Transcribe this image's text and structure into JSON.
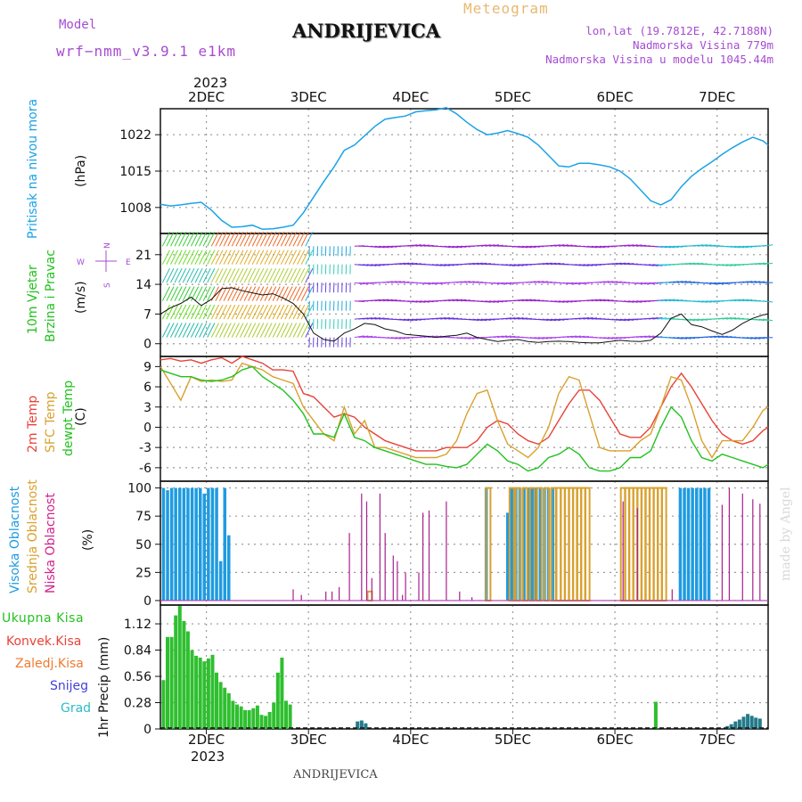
{
  "header": {
    "model_label": "Model",
    "model_name": "wrf−nmm_v3.9.1  e1km",
    "station": "ANDRIJEVICA",
    "subtitle": "Meteogram",
    "coords": "lon,lat (19.7812E, 42.7188N)",
    "altitude": "Nadmorska Visina 779m",
    "model_altitude": "Nadmorska Visina u modelu 1045.44m",
    "year_top": "2023",
    "year_bottom": "2023",
    "footer_station": "ANDRIJEVICA",
    "watermark": "made by Angel"
  },
  "colors": {
    "pressure": "#1aa3e6",
    "temp2m": "#e8423a",
    "sfc": "#d9a12e",
    "dewpt": "#22c21e",
    "high_cloud": "#1e9be0",
    "mid_cloud": "#d9a12e",
    "low_cloud": "#a8208f",
    "precip": "#2fbf2f",
    "snow_bar": "#237a8a",
    "label_purple": "#a64cd0",
    "grid": "#999999"
  },
  "chart_data": [
    {
      "type": "line",
      "id": "pressure",
      "ylabel": "Pritisak na nivou mora",
      "unit": "(hPa)",
      "xlim": [
        1.55,
        7.5
      ],
      "ylim": [
        1003,
        1027
      ],
      "yticks": [
        1008,
        1015,
        1022
      ],
      "x_ticks": [
        2,
        3,
        4,
        5,
        6,
        7
      ],
      "x_tick_labels": [
        "2DEC",
        "3DEC",
        "4DEC",
        "5DEC",
        "6DEC",
        "7DEC"
      ],
      "series": [
        {
          "key": "pressure",
          "x": [
            1.55,
            1.65,
            1.75,
            1.85,
            1.95,
            2.05,
            2.15,
            2.25,
            2.35,
            2.45,
            2.55,
            2.65,
            2.75,
            2.85,
            2.95,
            3.05,
            3.15,
            3.25,
            3.35,
            3.45,
            3.55,
            3.65,
            3.75,
            3.85,
            3.95,
            4.05,
            4.15,
            4.25,
            4.35,
            4.45,
            4.55,
            4.65,
            4.75,
            4.85,
            4.95,
            5.05,
            5.15,
            5.25,
            5.35,
            5.45,
            5.55,
            5.65,
            5.75,
            5.85,
            5.95,
            6.05,
            6.15,
            6.25,
            6.35,
            6.45,
            6.55,
            6.65,
            6.75,
            6.85,
            6.95,
            7.05,
            7.15,
            7.25,
            7.35,
            7.45,
            7.5
          ],
          "y": [
            1008.6,
            1008.3,
            1008.5,
            1008.8,
            1009,
            1007.5,
            1005.5,
            1004.2,
            1004.3,
            1004.6,
            1003.8,
            1003.9,
            1004.2,
            1004.6,
            1007,
            1010,
            1013,
            1015.8,
            1019,
            1020,
            1021.8,
            1023.6,
            1025,
            1025.3,
            1025.6,
            1026.4,
            1026.6,
            1026.8,
            1027.2,
            1026,
            1024.4,
            1023,
            1022,
            1022.3,
            1022.8,
            1022.2,
            1021.5,
            1020,
            1018,
            1016,
            1015.8,
            1016.5,
            1016.5,
            1016.2,
            1015.8,
            1015,
            1013.5,
            1011.4,
            1009.3,
            1008.5,
            1009.5,
            1012,
            1014,
            1015.5,
            1016.8,
            1018.2,
            1019.5,
            1020.6,
            1021.5,
            1020.8,
            1020
          ]
        }
      ]
    },
    {
      "type": "line",
      "id": "wind",
      "ylabel": [
        "10m Vjetar",
        "Brzina i Pravac"
      ],
      "unit": "(m/s)",
      "xlim": [
        1.55,
        7.5
      ],
      "ylim": [
        -3,
        26
      ],
      "yticks": [
        0,
        7,
        14,
        21
      ],
      "compass": [
        "N",
        "E",
        "S",
        "W"
      ],
      "series": [
        {
          "key": "wind_speed",
          "x": [
            1.55,
            1.65,
            1.75,
            1.85,
            1.95,
            2.05,
            2.15,
            2.25,
            2.35,
            2.45,
            2.55,
            2.65,
            2.75,
            2.85,
            2.95,
            3.05,
            3.15,
            3.25,
            3.35,
            3.45,
            3.55,
            3.65,
            3.75,
            3.85,
            3.95,
            4.05,
            4.15,
            4.25,
            4.35,
            4.45,
            4.55,
            4.65,
            4.75,
            4.85,
            4.95,
            5.05,
            5.15,
            5.25,
            5.35,
            5.45,
            5.55,
            5.65,
            5.75,
            5.85,
            5.95,
            6.05,
            6.15,
            6.25,
            6.35,
            6.45,
            6.55,
            6.65,
            6.75,
            6.85,
            6.95,
            7.05,
            7.15,
            7.25,
            7.35,
            7.45,
            7.5
          ],
          "y": [
            7,
            8.5,
            9.5,
            11,
            9,
            10.5,
            13,
            13.2,
            12.5,
            12,
            11.5,
            11.8,
            10.8,
            9.5,
            7,
            2.5,
            1,
            0.6,
            2.5,
            3.5,
            4.8,
            4.5,
            3.5,
            3,
            2.2,
            2,
            1.8,
            1.5,
            1.8,
            2,
            2.5,
            1.5,
            1,
            0.5,
            0.8,
            1,
            0.5,
            0.3,
            0.5,
            0.6,
            0.5,
            0.3,
            0.2,
            0.2,
            0.5,
            0.8,
            0.6,
            0.5,
            0.8,
            2.5,
            6,
            7,
            4.5,
            4,
            3,
            2.2,
            3.2,
            4.8,
            6,
            6.8,
            7
          ]
        }
      ]
    },
    {
      "type": "line",
      "id": "temperature",
      "ylabel": [
        "2m Temp",
        "SFC Temp",
        "dewpt Temp"
      ],
      "unit": "(C)",
      "xlim": [
        1.55,
        7.5
      ],
      "ylim": [
        -8,
        10.5
      ],
      "yticks": [
        -6,
        -3,
        0,
        3,
        6,
        9
      ],
      "series": [
        {
          "key": "temp2m",
          "x": [
            1.55,
            1.65,
            1.75,
            1.85,
            1.95,
            2.05,
            2.15,
            2.25,
            2.35,
            2.45,
            2.55,
            2.65,
            2.75,
            2.85,
            2.95,
            3.05,
            3.15,
            3.25,
            3.35,
            3.45,
            3.55,
            3.65,
            3.75,
            3.85,
            3.95,
            4.05,
            4.15,
            4.25,
            4.35,
            4.45,
            4.55,
            4.65,
            4.75,
            4.85,
            4.95,
            5.05,
            5.15,
            5.25,
            5.35,
            5.45,
            5.55,
            5.65,
            5.75,
            5.85,
            5.95,
            6.05,
            6.15,
            6.25,
            6.35,
            6.45,
            6.55,
            6.65,
            6.75,
            6.85,
            6.95,
            7.05,
            7.15,
            7.25,
            7.35,
            7.45,
            7.5
          ],
          "y": [
            10,
            10.2,
            9.8,
            10,
            9.5,
            10,
            10.3,
            9.5,
            10.5,
            10,
            9.5,
            8.5,
            8.5,
            8.3,
            5,
            4.5,
            3,
            1.5,
            2,
            1.5,
            0,
            -1,
            -2,
            -2.5,
            -3,
            -3.5,
            -3.5,
            -3.5,
            -3,
            -3,
            -3,
            -2,
            0,
            1,
            0.5,
            -1,
            -2,
            -2.5,
            -1.5,
            1,
            3.5,
            5.5,
            5.5,
            4,
            1.5,
            -1,
            -1.5,
            -1.5,
            0,
            3,
            6,
            8,
            6,
            3.5,
            1,
            -1,
            -2,
            -2.5,
            -2,
            -0.5,
            0
          ]
        },
        {
          "key": "sfc",
          "x": [
            1.55,
            1.65,
            1.75,
            1.85,
            1.95,
            2.05,
            2.15,
            2.25,
            2.35,
            2.45,
            2.55,
            2.65,
            2.75,
            2.85,
            2.95,
            3.05,
            3.15,
            3.25,
            3.35,
            3.45,
            3.55,
            3.65,
            3.75,
            3.85,
            3.95,
            4.05,
            4.15,
            4.25,
            4.35,
            4.45,
            4.55,
            4.65,
            4.75,
            4.85,
            4.95,
            5.05,
            5.15,
            5.25,
            5.35,
            5.45,
            5.55,
            5.65,
            5.75,
            5.85,
            5.95,
            6.05,
            6.15,
            6.25,
            6.35,
            6.45,
            6.55,
            6.65,
            6.75,
            6.85,
            6.95,
            7.05,
            7.15,
            7.25,
            7.35,
            7.45,
            7.5
          ],
          "y": [
            9,
            6.5,
            4,
            7.5,
            6.8,
            7,
            6.8,
            7,
            9.5,
            9,
            8.5,
            7.5,
            7,
            6.5,
            3,
            1,
            -1,
            -2,
            3,
            -1,
            1,
            -3,
            -3,
            -3.5,
            -4,
            -4.5,
            -4.5,
            -4.5,
            -4,
            -2,
            2,
            5,
            5.5,
            1,
            -2.5,
            -3.5,
            -4.5,
            -3,
            0,
            5,
            7.5,
            7,
            2,
            -3,
            -3.5,
            -3.5,
            -3.5,
            -2,
            -1,
            3,
            7.5,
            7,
            3,
            -2,
            -4.5,
            -2,
            -2,
            -2,
            0,
            2.5,
            3
          ]
        },
        {
          "key": "dewpt",
          "x": [
            1.55,
            1.65,
            1.75,
            1.85,
            1.95,
            2.05,
            2.15,
            2.25,
            2.35,
            2.45,
            2.55,
            2.65,
            2.75,
            2.85,
            2.95,
            3.05,
            3.15,
            3.25,
            3.35,
            3.45,
            3.55,
            3.65,
            3.75,
            3.85,
            3.95,
            4.05,
            4.15,
            4.25,
            4.35,
            4.45,
            4.55,
            4.65,
            4.75,
            4.85,
            4.95,
            5.05,
            5.15,
            5.25,
            5.35,
            5.45,
            5.55,
            5.65,
            5.75,
            5.85,
            5.95,
            6.05,
            6.15,
            6.25,
            6.35,
            6.45,
            6.55,
            6.65,
            6.75,
            6.85,
            6.95,
            7.05,
            7.15,
            7.25,
            7.35,
            7.45,
            7.5
          ],
          "y": [
            8.5,
            8,
            7.5,
            7.5,
            7,
            6.8,
            7,
            7.5,
            8.5,
            9,
            7.5,
            6.5,
            5.5,
            4,
            2,
            -1,
            -1,
            -1.5,
            2,
            -1.5,
            -2,
            -3,
            -3.5,
            -4,
            -4.5,
            -5,
            -5.5,
            -5.5,
            -5.8,
            -6,
            -5.5,
            -4,
            -2.5,
            -3.5,
            -5,
            -5.5,
            -6.5,
            -6,
            -4.5,
            -4,
            -3,
            -4,
            -6,
            -6.5,
            -6.5,
            -6,
            -4.5,
            -4.5,
            -3.5,
            0,
            3,
            1.5,
            -2,
            -4.5,
            -5,
            -4,
            -4.5,
            -5,
            -5.5,
            -6,
            -5.5
          ]
        }
      ]
    },
    {
      "type": "bar",
      "id": "cloud",
      "ylabel": [
        "Visoka Oblacnost",
        "Srednja Oblacnost",
        "Niska Oblacnost"
      ],
      "unit": "(%)",
      "xlim": [
        1.55,
        7.5
      ],
      "ylim": [
        -4,
        106
      ],
      "yticks": [
        0,
        25,
        50,
        75,
        100
      ],
      "series": [
        {
          "key": "high_cloud",
          "x": [
            1.58,
            1.62,
            1.66,
            1.7,
            1.74,
            1.78,
            1.82,
            1.86,
            1.9,
            1.94,
            1.98,
            2.02,
            2.06,
            2.1,
            2.14,
            2.18,
            2.22,
            4.74,
            4.95,
            4.99,
            5.03,
            5.07,
            5.11,
            5.15,
            5.19,
            5.23,
            5.27,
            5.31,
            5.35,
            5.39,
            6.64,
            6.68,
            6.72,
            6.76,
            6.8,
            6.84,
            6.88,
            6.92
          ],
          "values": [
            100,
            98,
            100,
            100,
            100,
            100,
            100,
            100,
            100,
            100,
            95,
            100,
            100,
            100,
            35,
            100,
            58,
            100,
            78,
            100,
            100,
            100,
            100,
            100,
            100,
            100,
            100,
            100,
            100,
            100,
            100,
            100,
            100,
            100,
            100,
            100,
            100,
            100
          ]
        },
        {
          "key": "mid_cloud",
          "x": [
            3.6,
            4.76,
            4.99,
            5.05,
            5.12,
            5.19,
            5.26,
            5.33,
            5.4,
            5.45,
            5.49,
            5.53,
            5.57,
            5.61,
            5.65,
            5.69,
            5.73,
            6.08,
            6.12,
            6.16,
            6.2,
            6.24,
            6.28,
            6.32,
            6.36,
            6.4,
            6.44,
            6.48
          ],
          "values": [
            8,
            100,
            100,
            100,
            100,
            100,
            100,
            100,
            100,
            100,
            100,
            100,
            100,
            100,
            100,
            100,
            100,
            100,
            100,
            100,
            100,
            100,
            100,
            100,
            100,
            100,
            100,
            100
          ]
        },
        {
          "key": "low_cloud",
          "x": [
            2.85,
            2.93,
            3.17,
            3.23,
            3.3,
            3.4,
            3.52,
            3.57,
            3.62,
            3.7,
            3.75,
            3.83,
            3.87,
            3.92,
            3.95,
            4.08,
            4.12,
            4.18,
            4.35,
            4.48,
            4.6,
            6.08,
            6.22,
            6.56,
            7.05,
            7.12,
            7.25,
            7.35,
            7.42
          ],
          "values": [
            10,
            5,
            8,
            8,
            12,
            60,
            95,
            88,
            20,
            95,
            60,
            40,
            35,
            5,
            25,
            25,
            78,
            80,
            88,
            8,
            3,
            88,
            82,
            10,
            85,
            100,
            95,
            90,
            86
          ]
        }
      ]
    },
    {
      "type": "bar",
      "id": "precip",
      "ylabel": "1hr Precip (mm)",
      "xlim": [
        1.55,
        7.5
      ],
      "ylim": [
        0,
        1.32
      ],
      "yticks": [
        0,
        0.28,
        0.56,
        0.84,
        1.12
      ],
      "legend": [
        "Ukupna  Kisa",
        "Konvek.Kisa",
        "Zaledj.Kisa",
        "Snijeg",
        "Grad"
      ],
      "series": [
        {
          "key": "precip",
          "x": [
            1.58,
            1.62,
            1.66,
            1.7,
            1.74,
            1.78,
            1.82,
            1.86,
            1.9,
            1.94,
            1.98,
            2.02,
            2.06,
            2.1,
            2.14,
            2.18,
            2.22,
            2.26,
            2.3,
            2.34,
            2.38,
            2.42,
            2.46,
            2.5,
            2.54,
            2.58,
            2.62,
            2.66,
            2.7,
            2.74,
            2.78,
            2.82,
            6.4
          ],
          "values": [
            0.52,
            0.98,
            0.98,
            1.21,
            1.31,
            1.15,
            1.04,
            0.84,
            0.78,
            0.76,
            0.72,
            0.75,
            0.79,
            0.6,
            0.5,
            0.44,
            0.38,
            0.3,
            0.26,
            0.24,
            0.2,
            0.2,
            0.22,
            0.25,
            0.15,
            0.14,
            0.18,
            0.28,
            0.6,
            0.76,
            0.3,
            0.26,
            0.29
          ]
        },
        {
          "key": "snow_bar",
          "x": [
            3.48,
            3.52,
            3.56,
            7.1,
            7.14,
            7.18,
            7.22,
            7.26,
            7.3,
            7.34,
            7.38,
            7.42
          ],
          "values": [
            0.08,
            0.09,
            0.06,
            0.03,
            0.05,
            0.08,
            0.1,
            0.13,
            0.16,
            0.14,
            0.12,
            0.11
          ]
        }
      ]
    }
  ]
}
